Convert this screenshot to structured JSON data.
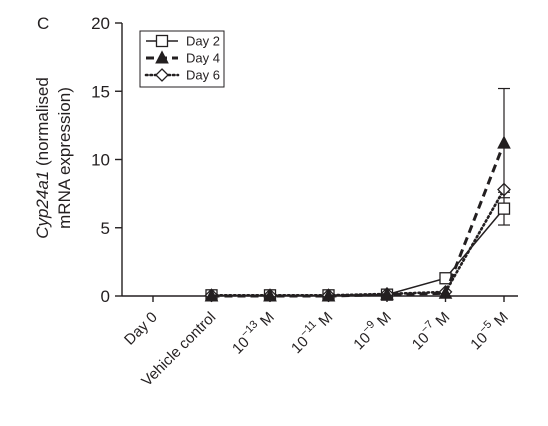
{
  "panel_label": "C",
  "chart_data": {
    "type": "line",
    "title": "",
    "xlabel": "",
    "ylabel_italic": "Cyp24a1",
    "ylabel_rest": " (normalised",
    "ylabel_line2": "mRNA expression)",
    "ylim": [
      0,
      20
    ],
    "yticks": [
      0,
      5,
      10,
      15,
      20
    ],
    "grid": false,
    "legend_position": "top-left",
    "categories": [
      {
        "base": "Day 0",
        "exp": ""
      },
      {
        "base": "Vehicle control",
        "exp": ""
      },
      {
        "base": "10",
        "exp": "−13",
        "unit": " M"
      },
      {
        "base": "10",
        "exp": "−11",
        "unit": " M"
      },
      {
        "base": "10",
        "exp": "−9",
        "unit": " M"
      },
      {
        "base": "10",
        "exp": "−7",
        "unit": " M"
      },
      {
        "base": "10",
        "exp": "−5",
        "unit": " M"
      }
    ],
    "series": [
      {
        "name": "Day 2",
        "marker": "square",
        "dash": "solid",
        "values": [
          null,
          0.05,
          0.05,
          0.05,
          0.1,
          1.3,
          6.4
        ],
        "error": [
          null,
          0,
          0,
          0,
          0,
          0,
          1.2
        ]
      },
      {
        "name": "Day 4",
        "marker": "triangle",
        "dash": "dashed",
        "values": [
          null,
          0.0,
          0.0,
          0.0,
          0.1,
          0.2,
          11.2
        ],
        "error": [
          null,
          0,
          0,
          0,
          0,
          0,
          4.0
        ]
      },
      {
        "name": "Day 6",
        "marker": "diamond",
        "dash": "dotted",
        "values": [
          null,
          0.05,
          0.05,
          0.05,
          0.15,
          0.3,
          7.8
        ],
        "error": [
          null,
          0,
          0,
          0,
          0,
          0,
          0
        ]
      }
    ]
  }
}
